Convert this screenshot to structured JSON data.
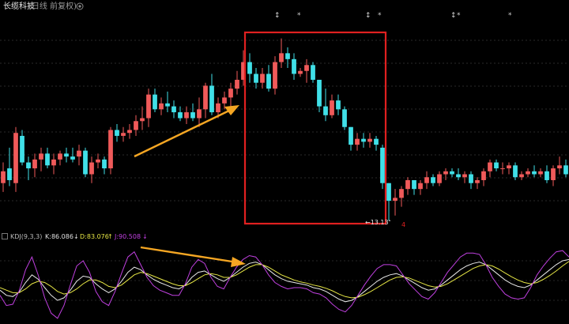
{
  "title_bar": {
    "stock_name": "长缆科技",
    "period": "(日线 前复权)",
    "settings_icon": "gear-icon"
  },
  "event_marks": [
    {
      "symbol": "↕",
      "name": "event-marker"
    },
    {
      "symbol": "*",
      "name": "event-marker"
    },
    {
      "symbol": "↕",
      "name": "event-marker"
    },
    {
      "symbol": "*",
      "name": "event-marker"
    },
    {
      "symbol": "↕",
      "name": "event-marker"
    },
    {
      "symbol": "*",
      "name": "event-marker"
    },
    {
      "symbol": "*",
      "name": "event-marker"
    }
  ],
  "kdj": {
    "name": "KDJ(9,3,3)",
    "k_label": "K:86.086",
    "k_arrow": "↓",
    "d_label": "D:83.076",
    "d_arrow": "↑",
    "j_label": "J:90.508",
    "j_arrow": "↓"
  },
  "annotations": {
    "low_price_label": "←13.13",
    "side_mark": "4"
  },
  "colors": {
    "up": "#f05a5a",
    "down": "#40e0e8",
    "k": "#e8e8e8",
    "d": "#e6e645",
    "j": "#c040e0",
    "highlight_box": "#e02020",
    "arrow": "#f5a623"
  },
  "chart_data": [
    {
      "type": "candlestick",
      "title": "长缆科技 (日线 前复权)",
      "candles": [
        [
          14.4,
          15.1,
          14.1,
          14.8
        ],
        [
          14.9,
          15.6,
          14.3,
          14.5
        ],
        [
          14.4,
          16.3,
          14.1,
          16.1
        ],
        [
          16.0,
          16.2,
          15.0,
          15.1
        ],
        [
          15.1,
          15.3,
          14.5,
          14.9
        ],
        [
          14.9,
          15.4,
          14.6,
          15.2
        ],
        [
          15.2,
          15.6,
          14.8,
          15.4
        ],
        [
          15.4,
          15.6,
          14.9,
          15.0
        ],
        [
          15.0,
          15.4,
          14.7,
          15.2
        ],
        [
          15.2,
          15.5,
          15.0,
          15.4
        ],
        [
          15.4,
          15.6,
          15.1,
          15.3
        ],
        [
          15.3,
          15.6,
          15.1,
          15.2
        ],
        [
          15.3,
          15.7,
          15.0,
          15.5
        ],
        [
          15.5,
          15.6,
          14.6,
          14.7
        ],
        [
          14.7,
          15.3,
          14.4,
          15.1
        ],
        [
          15.1,
          15.4,
          14.9,
          15.2
        ],
        [
          15.2,
          15.3,
          14.7,
          14.9
        ],
        [
          14.9,
          16.3,
          14.7,
          16.2
        ],
        [
          16.2,
          16.4,
          15.8,
          16.0
        ],
        [
          16.0,
          16.3,
          15.8,
          16.1
        ],
        [
          16.1,
          16.4,
          15.9,
          16.2
        ],
        [
          16.2,
          16.7,
          16.0,
          16.5
        ],
        [
          16.5,
          17.0,
          16.2,
          16.6
        ],
        [
          16.6,
          17.6,
          16.3,
          17.4
        ],
        [
          17.4,
          17.6,
          16.8,
          16.9
        ],
        [
          16.9,
          17.3,
          16.7,
          17.1
        ],
        [
          17.1,
          17.5,
          16.8,
          17.0
        ],
        [
          17.0,
          17.2,
          16.6,
          16.8
        ],
        [
          16.8,
          17.0,
          16.5,
          16.6
        ],
        [
          16.6,
          17.0,
          16.4,
          16.8
        ],
        [
          16.8,
          17.1,
          16.5,
          16.6
        ],
        [
          16.6,
          17.3,
          16.3,
          16.9
        ],
        [
          16.9,
          17.8,
          16.6,
          17.7
        ],
        [
          17.7,
          18.1,
          16.7,
          16.8
        ],
        [
          16.8,
          17.3,
          16.6,
          17.1
        ],
        [
          17.1,
          17.5,
          16.9,
          17.3
        ],
        [
          17.3,
          17.8,
          17.0,
          17.6
        ],
        [
          17.6,
          18.2,
          17.4,
          17.9
        ],
        [
          17.9,
          18.9,
          17.7,
          18.5
        ],
        [
          18.5,
          18.8,
          17.8,
          18.1
        ],
        [
          18.1,
          18.3,
          17.6,
          17.8
        ],
        [
          17.8,
          18.3,
          17.6,
          18.1
        ],
        [
          18.1,
          18.4,
          17.5,
          17.6
        ],
        [
          17.6,
          18.7,
          17.4,
          18.5
        ],
        [
          18.5,
          19.3,
          18.3,
          18.8
        ],
        [
          18.8,
          19.0,
          18.3,
          18.6
        ],
        [
          18.6,
          18.8,
          17.9,
          18.1
        ],
        [
          18.1,
          18.3,
          18.0,
          18.2
        ],
        [
          18.2,
          18.6,
          17.8,
          18.4
        ],
        [
          18.4,
          18.5,
          17.8,
          17.9
        ],
        [
          17.9,
          17.9,
          16.8,
          17.0
        ],
        [
          17.0,
          17.6,
          16.5,
          16.7
        ],
        [
          16.7,
          17.4,
          16.6,
          17.2
        ],
        [
          17.2,
          17.4,
          16.7,
          16.9
        ],
        [
          16.9,
          17.0,
          16.2,
          16.3
        ],
        [
          16.3,
          16.3,
          15.5,
          15.7
        ],
        [
          15.7,
          16.1,
          15.5,
          15.9
        ],
        [
          15.9,
          16.1,
          15.6,
          15.8
        ],
        [
          15.8,
          16.1,
          15.6,
          15.9
        ],
        [
          15.9,
          16.0,
          15.5,
          15.7
        ],
        [
          15.6,
          15.7,
          14.2,
          14.4
        ],
        [
          14.4,
          14.4,
          13.13,
          13.8
        ],
        [
          13.8,
          14.2,
          13.3,
          13.9
        ],
        [
          13.9,
          14.3,
          13.6,
          14.2
        ],
        [
          14.2,
          14.6,
          14.0,
          14.5
        ],
        [
          14.5,
          14.5,
          14.0,
          14.2
        ],
        [
          14.2,
          14.5,
          14.0,
          14.4
        ],
        [
          14.4,
          14.8,
          14.2,
          14.6
        ],
        [
          14.6,
          14.7,
          14.3,
          14.4
        ],
        [
          14.4,
          14.8,
          14.3,
          14.7
        ],
        [
          14.7,
          14.9,
          14.5,
          14.8
        ],
        [
          14.8,
          14.9,
          14.6,
          14.7
        ],
        [
          14.7,
          14.9,
          14.5,
          14.6
        ],
        [
          14.6,
          14.8,
          14.4,
          14.7
        ],
        [
          14.7,
          14.8,
          14.2,
          14.4
        ],
        [
          14.4,
          14.6,
          14.2,
          14.5
        ],
        [
          14.5,
          14.9,
          14.3,
          14.8
        ],
        [
          14.8,
          15.2,
          14.6,
          15.1
        ],
        [
          15.1,
          15.2,
          14.8,
          14.9
        ],
        [
          14.9,
          15.1,
          14.7,
          14.9
        ],
        [
          14.9,
          15.1,
          14.7,
          15.0
        ],
        [
          15.0,
          15.1,
          14.5,
          14.6
        ],
        [
          14.6,
          14.8,
          14.5,
          14.7
        ],
        [
          14.7,
          14.9,
          14.6,
          14.8
        ],
        [
          14.8,
          15.0,
          14.6,
          14.7
        ],
        [
          14.7,
          14.9,
          14.6,
          14.8
        ],
        [
          14.8,
          15.0,
          14.4,
          14.5
        ],
        [
          14.5,
          15.0,
          14.3,
          14.9
        ],
        [
          14.9,
          15.3,
          14.7,
          15.0
        ],
        [
          15.0,
          15.2,
          14.6,
          14.7
        ]
      ],
      "ylim": [
        13.0,
        19.8
      ],
      "highlight_range": [
        35,
        67
      ],
      "low_marker": {
        "index": 61,
        "value": 13.13
      }
    },
    {
      "type": "line",
      "title": "KDJ(9,3,3)",
      "ylim": [
        -10,
        110
      ],
      "series": [
        {
          "name": "K",
          "values": [
            38,
            30,
            28,
            35,
            50,
            62,
            55,
            42,
            30,
            22,
            26,
            38,
            52,
            60,
            58,
            48,
            40,
            34,
            40,
            52,
            66,
            74,
            70,
            62,
            55,
            50,
            46,
            42,
            40,
            46,
            58,
            66,
            68,
            62,
            56,
            52,
            58,
            66,
            74,
            80,
            82,
            78,
            70,
            62,
            56,
            52,
            50,
            48,
            46,
            42,
            40,
            36,
            30,
            24,
            20,
            22,
            28,
            36,
            44,
            52,
            58,
            62,
            64,
            60,
            54,
            48,
            42,
            38,
            40,
            46,
            54,
            62,
            70,
            76,
            80,
            82,
            78,
            70,
            62,
            54,
            48,
            44,
            42,
            46,
            54,
            62,
            70,
            78,
            84,
            86
          ]
        },
        {
          "name": "D",
          "values": [
            42,
            38,
            34,
            34,
            40,
            48,
            52,
            50,
            44,
            36,
            32,
            34,
            40,
            48,
            54,
            54,
            50,
            44,
            42,
            46,
            54,
            62,
            66,
            64,
            60,
            56,
            52,
            48,
            45,
            45,
            50,
            56,
            62,
            64,
            62,
            58,
            58,
            62,
            68,
            74,
            78,
            78,
            74,
            68,
            62,
            58,
            54,
            51,
            49,
            46,
            44,
            41,
            37,
            32,
            28,
            26,
            27,
            31,
            36,
            42,
            48,
            54,
            58,
            59,
            57,
            53,
            49,
            45,
            43,
            44,
            48,
            54,
            60,
            66,
            72,
            76,
            78,
            76,
            71,
            65,
            59,
            54,
            50,
            48,
            50,
            55,
            61,
            68,
            76,
            83
          ]
        },
        {
          "name": "J",
          "values": [
            30,
            14,
            16,
            37,
            70,
            90,
            61,
            26,
            2,
            -6,
            14,
            46,
            76,
            84,
            66,
            36,
            20,
            14,
            36,
            64,
            90,
            98,
            78,
            58,
            45,
            38,
            34,
            30,
            30,
            48,
            74,
            86,
            80,
            58,
            44,
            40,
            58,
            74,
            86,
            92,
            90,
            78,
            62,
            50,
            44,
            40,
            42,
            42,
            40,
            34,
            32,
            26,
            16,
            8,
            4,
            14,
            30,
            46,
            60,
            72,
            78,
            78,
            76,
            62,
            48,
            38,
            28,
            24,
            34,
            50,
            66,
            78,
            90,
            96,
            96,
            94,
            78,
            58,
            44,
            32,
            26,
            24,
            26,
            42,
            62,
            76,
            88,
            98,
            100,
            90
          ]
        }
      ]
    }
  ]
}
